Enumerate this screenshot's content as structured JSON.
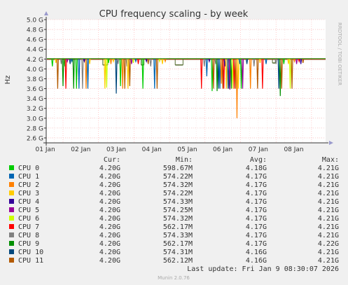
{
  "chart_data": {
    "type": "line",
    "title": "CPU frequency scaling - by week",
    "ylabel": "Hz",
    "side_label": "RRDTOOL / TOBI OETIKER",
    "y_ticks": [
      "5.0 G",
      "4.8 G",
      "4.6 G",
      "4.4 G",
      "4.2 G",
      "4.0 G",
      "3.8 G",
      "3.6 G",
      "3.4 G",
      "3.2 G",
      "3.0 G",
      "2.8 G",
      "2.6 G"
    ],
    "ylim": [
      2.5,
      5.0
    ],
    "x_ticks": [
      "01 Jan",
      "02 Jan",
      "03 Jan",
      "04 Jan",
      "05 Jan",
      "06 Jan",
      "07 Jan",
      "08 Jan"
    ],
    "grid": true,
    "legend_headers": {
      "cur": "Cur:",
      "min": "Min:",
      "avg": "Avg:",
      "max": "Max:"
    },
    "series": [
      {
        "name": "CPU 0",
        "color": "#00cc00",
        "cur": "4.20G",
        "min": "598.67M",
        "avg": "4.18G",
        "max": "4.21G"
      },
      {
        "name": "CPU 1",
        "color": "#0066b3",
        "cur": "4.20G",
        "min": "574.22M",
        "avg": "4.17G",
        "max": "4.21G"
      },
      {
        "name": "CPU 2",
        "color": "#ff8000",
        "cur": "4.20G",
        "min": "574.32M",
        "avg": "4.17G",
        "max": "4.21G"
      },
      {
        "name": "CPU 3",
        "color": "#ffcc00",
        "cur": "4.20G",
        "min": "574.22M",
        "avg": "4.17G",
        "max": "4.21G"
      },
      {
        "name": "CPU 4",
        "color": "#330099",
        "cur": "4.20G",
        "min": "574.33M",
        "avg": "4.17G",
        "max": "4.21G"
      },
      {
        "name": "CPU 5",
        "color": "#990099",
        "cur": "4.20G",
        "min": "574.25M",
        "avg": "4.17G",
        "max": "4.21G"
      },
      {
        "name": "CPU 6",
        "color": "#ccff00",
        "cur": "4.20G",
        "min": "574.32M",
        "avg": "4.17G",
        "max": "4.21G"
      },
      {
        "name": "CPU 7",
        "color": "#ff0000",
        "cur": "4.20G",
        "min": "562.17M",
        "avg": "4.17G",
        "max": "4.21G"
      },
      {
        "name": "CPU 8",
        "color": "#808080",
        "cur": "4.20G",
        "min": "574.33M",
        "avg": "4.17G",
        "max": "4.21G"
      },
      {
        "name": "CPU 9",
        "color": "#008f00",
        "cur": "4.20G",
        "min": "562.17M",
        "avg": "4.17G",
        "max": "4.22G"
      },
      {
        "name": "CPU 10",
        "color": "#00487d",
        "cur": "4.20G",
        "min": "574.31M",
        "avg": "4.16G",
        "max": "4.21G"
      },
      {
        "name": "CPU 11",
        "color": "#b35a00",
        "cur": "4.20G",
        "min": "562.12M",
        "avg": "4.16G",
        "max": "4.21G"
      }
    ],
    "baseline_value": 4.2,
    "dips": [
      {
        "x": 0.2,
        "v": 4.05,
        "s": 0
      },
      {
        "x": 0.3,
        "v": 4.12,
        "s": 3
      },
      {
        "x": 0.45,
        "v": 4.1,
        "s": 8
      },
      {
        "x": 0.55,
        "v": 4.05,
        "s": 0
      },
      {
        "x": 0.75,
        "v": 4.15,
        "s": 1
      },
      {
        "x": 0.35,
        "v": 3.6,
        "s": 11
      },
      {
        "x": 0.5,
        "v": 3.65,
        "s": 9
      },
      {
        "x": 0.58,
        "v": 3.6,
        "s": 7
      },
      {
        "x": 0.62,
        "v": 4.15,
        "s": 5
      },
      {
        "x": 0.7,
        "v": 4.1,
        "s": 10
      },
      {
        "x": 0.8,
        "v": 3.6,
        "s": 9
      },
      {
        "x": 0.88,
        "v": 3.6,
        "s": 0
      },
      {
        "x": 0.95,
        "v": 3.6,
        "s": 1
      },
      {
        "x": 1.05,
        "v": 3.6,
        "s": 8
      },
      {
        "x": 1.15,
        "v": 3.6,
        "s": 2
      },
      {
        "x": 1.25,
        "v": 4.1,
        "s": 3
      },
      {
        "x": 1.1,
        "v": 4.15,
        "s": 4
      },
      {
        "x": 1.2,
        "v": 3.6,
        "s": 1
      },
      {
        "x": 1.68,
        "v": 3.6,
        "s": 3
      },
      {
        "x": 1.73,
        "v": 3.62,
        "s": 6
      },
      {
        "x": 1.78,
        "v": 4.12,
        "s": 0
      },
      {
        "x": 1.85,
        "v": 4.1,
        "s": 2
      },
      {
        "x": 1.92,
        "v": 4.15,
        "s": 3
      },
      {
        "x": 2.0,
        "v": 3.5,
        "s": 10
      },
      {
        "x": 2.05,
        "v": 4.1,
        "s": 8
      },
      {
        "x": 2.12,
        "v": 3.65,
        "s": 0
      },
      {
        "x": 2.18,
        "v": 3.6,
        "s": 2
      },
      {
        "x": 2.24,
        "v": 3.6,
        "s": 11
      },
      {
        "x": 2.3,
        "v": 4.05,
        "s": 8
      },
      {
        "x": 2.33,
        "v": 3.6,
        "s": 3
      },
      {
        "x": 2.38,
        "v": 3.65,
        "s": 11
      },
      {
        "x": 2.43,
        "v": 4.1,
        "s": 5
      },
      {
        "x": 2.48,
        "v": 4.12,
        "s": 6
      },
      {
        "x": 2.55,
        "v": 4.15,
        "s": 1
      },
      {
        "x": 2.62,
        "v": 4.1,
        "s": 7
      },
      {
        "x": 2.75,
        "v": 3.6,
        "s": 0
      },
      {
        "x": 2.85,
        "v": 4.15,
        "s": 4
      },
      {
        "x": 2.9,
        "v": 4.1,
        "s": 11
      },
      {
        "x": 2.97,
        "v": 4.05,
        "s": 8
      },
      {
        "x": 3.08,
        "v": 3.6,
        "s": 1
      },
      {
        "x": 3.15,
        "v": 3.6,
        "s": 11
      },
      {
        "x": 3.22,
        "v": 4.15,
        "s": 6
      },
      {
        "x": 3.3,
        "v": 4.1,
        "s": 3
      },
      {
        "x": 3.38,
        "v": 4.15,
        "s": 2
      },
      {
        "x": 4.4,
        "v": 3.6,
        "s": 7
      },
      {
        "x": 4.48,
        "v": 4.05,
        "s": 8
      },
      {
        "x": 4.55,
        "v": 3.85,
        "s": 1
      },
      {
        "x": 4.62,
        "v": 4.15,
        "s": 4
      },
      {
        "x": 4.7,
        "v": 3.55,
        "s": 0
      },
      {
        "x": 4.74,
        "v": 3.6,
        "s": 11
      },
      {
        "x": 4.8,
        "v": 4.1,
        "s": 8
      },
      {
        "x": 4.84,
        "v": 3.55,
        "s": 9
      },
      {
        "x": 4.88,
        "v": 3.6,
        "s": 10
      },
      {
        "x": 4.92,
        "v": 3.6,
        "s": 1
      },
      {
        "x": 4.96,
        "v": 3.7,
        "s": 2
      },
      {
        "x": 5.0,
        "v": 3.6,
        "s": 11
      },
      {
        "x": 5.03,
        "v": 3.6,
        "s": 7
      },
      {
        "x": 5.06,
        "v": 4.05,
        "s": 4
      },
      {
        "x": 5.1,
        "v": 3.6,
        "s": 3
      },
      {
        "x": 5.14,
        "v": 3.6,
        "s": 8
      },
      {
        "x": 5.17,
        "v": 3.6,
        "s": 10
      },
      {
        "x": 5.2,
        "v": 3.58,
        "s": 5
      },
      {
        "x": 5.24,
        "v": 3.6,
        "s": 9
      },
      {
        "x": 5.28,
        "v": 3.6,
        "s": 6
      },
      {
        "x": 5.32,
        "v": 3.6,
        "s": 7
      },
      {
        "x": 5.36,
        "v": 3.6,
        "s": 11
      },
      {
        "x": 5.4,
        "v": 3.0,
        "s": 2
      },
      {
        "x": 5.44,
        "v": 3.6,
        "s": 3
      },
      {
        "x": 5.48,
        "v": 4.1,
        "s": 1
      },
      {
        "x": 5.52,
        "v": 3.6,
        "s": 0
      },
      {
        "x": 5.56,
        "v": 3.6,
        "s": 5
      },
      {
        "x": 5.68,
        "v": 4.1,
        "s": 10
      },
      {
        "x": 5.78,
        "v": 3.6,
        "s": 2
      },
      {
        "x": 5.88,
        "v": 4.05,
        "s": 8
      },
      {
        "x": 5.98,
        "v": 3.6,
        "s": 11
      },
      {
        "x": 6.05,
        "v": 4.12,
        "s": 3
      },
      {
        "x": 6.12,
        "v": 3.6,
        "s": 7
      },
      {
        "x": 6.22,
        "v": 4.1,
        "s": 1
      },
      {
        "x": 6.5,
        "v": 4.1,
        "s": 8
      },
      {
        "x": 6.58,
        "v": 3.6,
        "s": 10
      },
      {
        "x": 6.62,
        "v": 3.45,
        "s": 9
      },
      {
        "x": 6.66,
        "v": 3.6,
        "s": 11
      },
      {
        "x": 6.72,
        "v": 4.1,
        "s": 0
      },
      {
        "x": 6.85,
        "v": 4.1,
        "s": 3
      },
      {
        "x": 6.9,
        "v": 3.6,
        "s": 6
      },
      {
        "x": 6.95,
        "v": 3.6,
        "s": 11
      },
      {
        "x": 7.02,
        "v": 4.15,
        "s": 2
      },
      {
        "x": 7.08,
        "v": 4.1,
        "s": 5
      },
      {
        "x": 7.15,
        "v": 4.15,
        "s": 7
      },
      {
        "x": 7.2,
        "v": 4.1,
        "s": 4
      },
      {
        "x": 7.26,
        "v": 4.12,
        "s": 11
      }
    ],
    "flat_segments": [
      {
        "x0": 1.62,
        "x1": 1.76,
        "v": 4.08
      },
      {
        "x0": 2.7,
        "x1": 2.78,
        "v": 4.08
      },
      {
        "x0": 3.66,
        "x1": 3.88,
        "v": 4.08
      },
      {
        "x0": 6.4,
        "x1": 6.48,
        "v": 4.12
      }
    ]
  },
  "footer": {
    "last_update": "Last update: Fri Jan  9 08:30:07 2026",
    "version": "Munin 2.0.76"
  }
}
